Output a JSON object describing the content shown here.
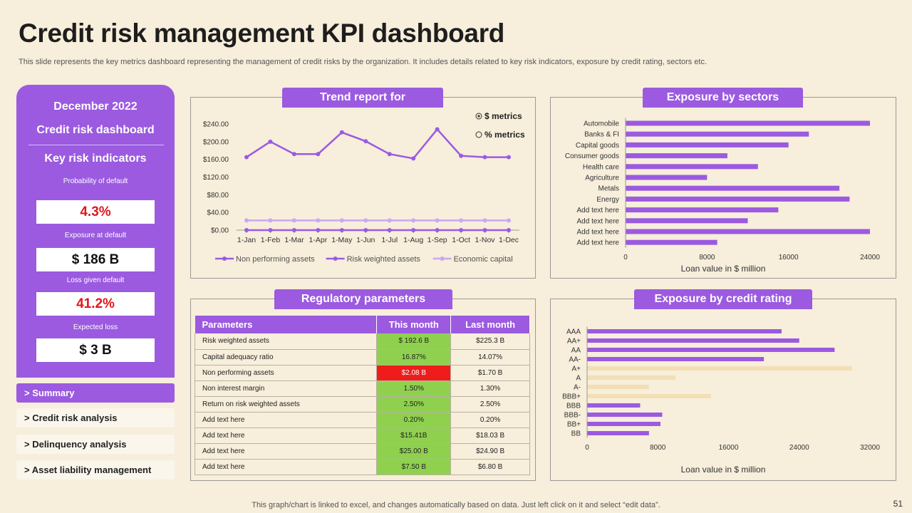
{
  "title": "Credit risk management KPI dashboard",
  "subtitle": "This slide represents the key metrics dashboard representing the management of credit risks by the organization. It includes details related to key risk indicators, exposure by credit rating, sectors etc.",
  "left_panel": {
    "month": "December 2022",
    "dashboard": "Credit risk dashboard",
    "kri_heading": "Key risk indicators",
    "indicators": [
      {
        "label": "Probability of default",
        "value": "4.3%",
        "color": "#e0161b"
      },
      {
        "label": "Exposure at default",
        "value": "$ 186 B",
        "color": "#111111"
      },
      {
        "label": "Loss given default",
        "value": "41.2%",
        "color": "#e0161b"
      },
      {
        "label": "Expected loss",
        "value": "$ 3 B",
        "color": "#111111"
      }
    ]
  },
  "nav": [
    {
      "label": "> Summary",
      "active": true
    },
    {
      "label": "> Credit risk analysis",
      "active": false
    },
    {
      "label": "> Delinquency analysis",
      "active": false
    },
    {
      "label": "> Asset  liability management",
      "active": false
    }
  ],
  "trend": {
    "tab": "Trend report for",
    "radio_dollar": "$ metrics",
    "radio_percent": "% metrics"
  },
  "sectors": {
    "tab": "Exposure by sectors"
  },
  "regulatory": {
    "tab": "Regulatory parameters",
    "headers": [
      "Parameters",
      "This month",
      "Last month"
    ],
    "rows": [
      {
        "param": "Risk weighted assets",
        "this": "$ 192.6 B",
        "last": "$225.3 B",
        "status": "green"
      },
      {
        "param": "Capital adequacy ratio",
        "this": "16.87%",
        "last": "14.07%",
        "status": "green"
      },
      {
        "param": "Non performing assets",
        "this": "$2.08 B",
        "last": "$1.70 B",
        "status": "red"
      },
      {
        "param": "Non interest margin",
        "this": "1.50%",
        "last": "1.30%",
        "status": "green"
      },
      {
        "param": "Return on risk weighted assets",
        "this": "2.50%",
        "last": "2.50%",
        "status": "green"
      },
      {
        "param": "Add text here",
        "this": "0.20%",
        "last": "0.20%",
        "status": "green"
      },
      {
        "param": "Add text here",
        "this": "$15.41B",
        "last": "$18.03 B",
        "status": "green"
      },
      {
        "param": "Add text here",
        "this": "$25.00 B",
        "last": "$24.90 B",
        "status": "green"
      },
      {
        "param": "Add text here",
        "this": "$7.50 B",
        "last": "$6.80 B",
        "status": "green"
      }
    ]
  },
  "credit_rating": {
    "tab": "Exposure by credit rating"
  },
  "chart_data": [
    {
      "type": "line",
      "title": "",
      "categories": [
        "1-Jan",
        "1-Feb",
        "1-Mar",
        "1-Apr",
        "1-May",
        "1-Jun",
        "1-Jul",
        "1-Aug",
        "1-Sep",
        "1-Oct",
        "1-Nov",
        "1-Dec"
      ],
      "series": [
        {
          "name": "Non performing assets",
          "values": [
            165,
            200,
            172,
            172,
            221,
            201,
            172,
            162,
            228,
            168,
            165,
            165
          ],
          "color": "#9b5ae0"
        },
        {
          "name": "Risk weighted assets",
          "values": [
            0,
            0,
            0,
            0,
            0,
            0,
            0,
            0,
            0,
            0,
            0,
            0
          ],
          "color": "#9b5ae0"
        },
        {
          "name": "Economic capital",
          "values": [
            22,
            22,
            22,
            22,
            22,
            22,
            22,
            22,
            22,
            22,
            22,
            22
          ],
          "color": "#c9a8ef"
        }
      ],
      "ylim": [
        0,
        240
      ],
      "yticks": [
        "$0.00",
        "$40.00",
        "$80.00",
        "$120.00",
        "$160.00",
        "$200.00",
        "$240.00"
      ],
      "legend_position": "bottom"
    },
    {
      "type": "bar",
      "orientation": "horizontal",
      "title": "",
      "xlabel": "Loan value  in $ million",
      "categories": [
        "Automobile",
        "Banks & FI",
        "Capital goods",
        "Consumer goods",
        "Health care",
        "Agriculture",
        "Metals",
        "Energy",
        "Add text here",
        "Add text here",
        "Add text here",
        "Add text here"
      ],
      "values": [
        24000,
        18000,
        16000,
        10000,
        13000,
        8000,
        21000,
        22000,
        15000,
        12000,
        24000,
        9000
      ],
      "xlim": [
        0,
        24000
      ],
      "xticks": [
        "0",
        "8000",
        "16000",
        "24000"
      ],
      "color": "#9b5ae0"
    },
    {
      "type": "bar",
      "orientation": "horizontal",
      "title": "",
      "xlabel": "Loan value  in $ million",
      "categories": [
        "AAA",
        "AA+",
        "AA",
        "AA-",
        "A+",
        "A",
        "A-",
        "BBB+",
        "BBB",
        "BBB-",
        "BB+",
        "BB"
      ],
      "values": [
        22000,
        24000,
        28000,
        20000,
        30000,
        10000,
        7000,
        14000,
        6000,
        8500,
        8300,
        7000
      ],
      "highlight": [
        false,
        false,
        false,
        false,
        true,
        true,
        true,
        true,
        false,
        false,
        false,
        false
      ],
      "xlim": [
        0,
        32000
      ],
      "xticks": [
        "0",
        "8000",
        "16000",
        "24000",
        "32000"
      ],
      "color": "#9b5ae0",
      "highlight_color": "#f2dfb4"
    }
  ],
  "footer": "This graph/chart is linked to excel,  and changes automatically based on data. Just left click on it and select “edit data”.",
  "page_number": "51"
}
